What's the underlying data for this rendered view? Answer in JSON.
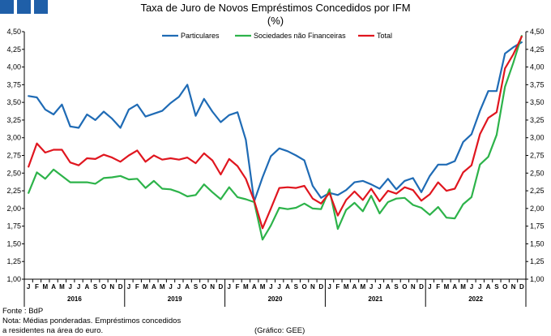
{
  "header": {
    "title": "Taxa de Juro de Novos Empréstimos Concedidos por IFM",
    "subtitle": "(%)"
  },
  "footer": {
    "source": "Fonte : BdP",
    "note_line1": "Nota: Médias ponderadas. Empréstimos concedidos",
    "note_line2": "a residentes na área do euro.",
    "credit": "(Gráfico: GEE)"
  },
  "colors": {
    "particulares": "#1f6bb5",
    "sociedades": "#2db34a",
    "total": "#e0161f",
    "brand": "#1f5fa8",
    "axis": "#000000"
  },
  "chart_data": {
    "type": "line",
    "title": "Taxa de Juro de Novos Empréstimos Concedidos por IFM",
    "subtitle": "(%)",
    "ylim": [
      1.0,
      4.5
    ],
    "yticks": [
      "1,00",
      "1,25",
      "1,50",
      "1,75",
      "2,00",
      "2,25",
      "2,50",
      "2,75",
      "3,00",
      "3,25",
      "3,50",
      "3,75",
      "4,00",
      "4,25",
      "4,50"
    ],
    "month_labels": [
      "J",
      "F",
      "M",
      "A",
      "M",
      "J",
      "J",
      "A",
      "S",
      "O",
      "N",
      "D"
    ],
    "years": [
      "2016",
      "2019",
      "2020",
      "2021",
      "2022"
    ],
    "legend_position": "top",
    "grid": false,
    "series": [
      {
        "name": "Particulares",
        "color": "#1f6bb5",
        "values": [
          3.59,
          3.57,
          3.4,
          3.33,
          3.47,
          3.16,
          3.14,
          3.33,
          3.25,
          3.37,
          3.27,
          3.14,
          3.4,
          3.47,
          3.3,
          3.34,
          3.38,
          3.49,
          3.58,
          3.75,
          3.31,
          3.55,
          3.37,
          3.22,
          3.32,
          3.36,
          2.97,
          2.1,
          2.44,
          2.74,
          2.85,
          2.81,
          2.75,
          2.68,
          2.32,
          2.15,
          2.22,
          2.19,
          2.26,
          2.37,
          2.39,
          2.34,
          2.28,
          2.42,
          2.27,
          2.39,
          2.43,
          2.23,
          2.46,
          2.62,
          2.62,
          2.67,
          2.94,
          3.05,
          3.38,
          3.66,
          3.66,
          4.19,
          4.28,
          4.35
        ]
      },
      {
        "name": "Sociedades não Financeiras",
        "color": "#2db34a",
        "values": [
          2.22,
          2.51,
          2.42,
          2.55,
          2.46,
          2.37,
          2.37,
          2.37,
          2.35,
          2.43,
          2.44,
          2.46,
          2.41,
          2.42,
          2.29,
          2.39,
          2.28,
          2.27,
          2.23,
          2.17,
          2.19,
          2.34,
          2.23,
          2.13,
          2.3,
          2.16,
          2.13,
          2.09,
          1.56,
          1.76,
          2.01,
          1.99,
          2.01,
          2.07,
          2.0,
          1.99,
          2.27,
          1.71,
          1.98,
          2.08,
          1.96,
          2.18,
          1.93,
          2.09,
          2.14,
          2.15,
          2.05,
          2.01,
          1.91,
          2.02,
          1.87,
          1.86,
          2.06,
          2.16,
          2.62,
          2.73,
          3.04,
          3.72,
          4.06,
          4.44
        ]
      },
      {
        "name": "Total",
        "color": "#e0161f",
        "values": [
          2.59,
          2.92,
          2.79,
          2.83,
          2.83,
          2.65,
          2.61,
          2.71,
          2.7,
          2.76,
          2.72,
          2.66,
          2.75,
          2.82,
          2.66,
          2.75,
          2.69,
          2.71,
          2.69,
          2.72,
          2.64,
          2.78,
          2.68,
          2.48,
          2.7,
          2.6,
          2.42,
          2.11,
          1.72,
          2.0,
          2.29,
          2.3,
          2.29,
          2.32,
          2.14,
          2.07,
          2.22,
          1.9,
          2.12,
          2.24,
          2.12,
          2.28,
          2.1,
          2.25,
          2.21,
          2.3,
          2.26,
          2.11,
          2.2,
          2.37,
          2.25,
          2.28,
          2.51,
          2.61,
          3.05,
          3.28,
          3.36,
          3.98,
          4.18,
          4.43
        ]
      }
    ]
  }
}
